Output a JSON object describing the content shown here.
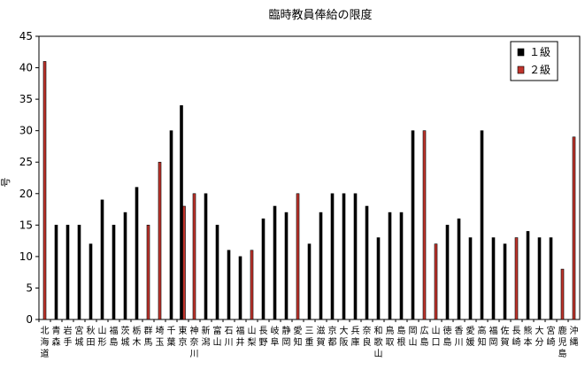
{
  "chart_data": {
    "type": "bar",
    "title": "臨時教員俸給の限度",
    "xlabel": "",
    "ylabel": "号",
    "ylim": [
      0,
      45
    ],
    "yticks": [
      0,
      5,
      10,
      15,
      20,
      25,
      30,
      35,
      40,
      45
    ],
    "grid": false,
    "legend_position": "top-right",
    "categories": [
      "北海道",
      "青森",
      "岩手",
      "宮城",
      "秋田",
      "山形",
      "福島",
      "茨城",
      "栃木",
      "群馬",
      "埼玉",
      "千葉",
      "東京",
      "神奈川",
      "新潟",
      "富山",
      "石川",
      "福井",
      "山梨",
      "長野",
      "岐阜",
      "静岡",
      "愛知",
      "三重",
      "滋賀",
      "京都",
      "大阪",
      "兵庫",
      "奈良",
      "和歌山",
      "鳥取",
      "島根",
      "岡山",
      "広島",
      "山口",
      "徳島",
      "香川",
      "愛媛",
      "高知",
      "福岡",
      "佐賀",
      "長崎",
      "熊本",
      "大分",
      "宮崎",
      "鹿児島",
      "沖縄"
    ],
    "series": [
      {
        "name": "１級",
        "color": "#000000",
        "values": [
          null,
          15,
          15,
          15,
          12,
          19,
          15,
          17,
          21,
          null,
          null,
          30,
          34,
          null,
          20,
          15,
          11,
          10,
          null,
          16,
          18,
          17,
          null,
          12,
          17,
          20,
          20,
          20,
          18,
          13,
          17,
          17,
          30,
          null,
          null,
          15,
          16,
          13,
          30,
          13,
          12,
          null,
          14,
          13,
          13,
          null,
          null
        ]
      },
      {
        "name": "２級",
        "color": "#c0342c",
        "values": [
          41,
          null,
          null,
          null,
          null,
          null,
          null,
          null,
          null,
          15,
          25,
          null,
          18,
          20,
          null,
          null,
          null,
          null,
          11,
          null,
          null,
          null,
          20,
          null,
          null,
          null,
          null,
          null,
          null,
          null,
          null,
          null,
          null,
          30,
          12,
          null,
          null,
          null,
          null,
          null,
          null,
          13,
          null,
          null,
          null,
          8,
          29
        ]
      }
    ]
  }
}
